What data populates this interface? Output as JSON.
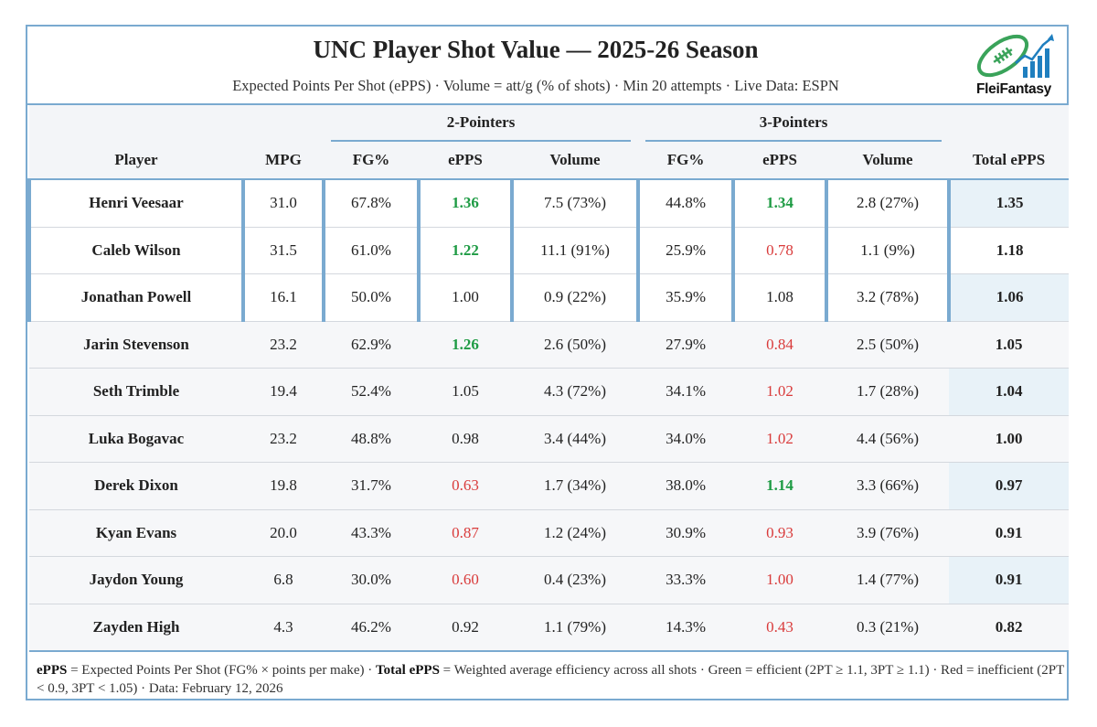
{
  "header": {
    "title": "UNC Player Shot Value — 2025-26 Season",
    "subtitle": "Expected Points Per Shot (ePPS) · Volume = att/g (% of shots) · Min 20 attempts · Live Data: ESPN",
    "logo_text": "FleiFantasy"
  },
  "table": {
    "group_2pt": "2-Pointers",
    "group_3pt": "3-Pointers",
    "columns": [
      "Player",
      "MPG",
      "FG%",
      "ePPS",
      "Volume",
      "FG%",
      "ePPS",
      "Volume",
      "Total ePPS"
    ],
    "rows": [
      {
        "player": "Henri Veesaar",
        "mpg": "31.0",
        "fg2": "67.8%",
        "epps2": "1.36",
        "epps2_class": "green",
        "vol2": "7.5 (73%)",
        "fg3": "44.8%",
        "epps3": "1.34",
        "epps3_class": "green",
        "vol3": "2.8 (27%)",
        "total": "1.35",
        "shade": true
      },
      {
        "player": "Caleb Wilson",
        "mpg": "31.5",
        "fg2": "61.0%",
        "epps2": "1.22",
        "epps2_class": "green",
        "vol2": "11.1 (91%)",
        "fg3": "25.9%",
        "epps3": "0.78",
        "epps3_class": "red",
        "vol3": "1.1 (9%)",
        "total": "1.18",
        "shade": false
      },
      {
        "player": "Jonathan Powell",
        "mpg": "16.1",
        "fg2": "50.0%",
        "epps2": "1.00",
        "epps2_class": "",
        "vol2": "0.9 (22%)",
        "fg3": "35.9%",
        "epps3": "1.08",
        "epps3_class": "",
        "vol3": "3.2 (78%)",
        "total": "1.06",
        "shade": true
      },
      {
        "player": "Jarin Stevenson",
        "mpg": "23.2",
        "fg2": "62.9%",
        "epps2": "1.26",
        "epps2_class": "green",
        "vol2": "2.6 (50%)",
        "fg3": "27.9%",
        "epps3": "0.84",
        "epps3_class": "red",
        "vol3": "2.5 (50%)",
        "total": "1.05",
        "shade": false
      },
      {
        "player": "Seth Trimble",
        "mpg": "19.4",
        "fg2": "52.4%",
        "epps2": "1.05",
        "epps2_class": "",
        "vol2": "4.3 (72%)",
        "fg3": "34.1%",
        "epps3": "1.02",
        "epps3_class": "red",
        "vol3": "1.7 (28%)",
        "total": "1.04",
        "shade": true
      },
      {
        "player": "Luka Bogavac",
        "mpg": "23.2",
        "fg2": "48.8%",
        "epps2": "0.98",
        "epps2_class": "",
        "vol2": "3.4 (44%)",
        "fg3": "34.0%",
        "epps3": "1.02",
        "epps3_class": "red",
        "vol3": "4.4 (56%)",
        "total": "1.00",
        "shade": false
      },
      {
        "player": "Derek Dixon",
        "mpg": "19.8",
        "fg2": "31.7%",
        "epps2": "0.63",
        "epps2_class": "red",
        "vol2": "1.7 (34%)",
        "fg3": "38.0%",
        "epps3": "1.14",
        "epps3_class": "green",
        "vol3": "3.3 (66%)",
        "total": "0.97",
        "shade": true
      },
      {
        "player": "Kyan Evans",
        "mpg": "20.0",
        "fg2": "43.3%",
        "epps2": "0.87",
        "epps2_class": "red",
        "vol2": "1.2 (24%)",
        "fg3": "30.9%",
        "epps3": "0.93",
        "epps3_class": "red",
        "vol3": "3.9 (76%)",
        "total": "0.91",
        "shade": false
      },
      {
        "player": "Jaydon Young",
        "mpg": "6.8",
        "fg2": "30.0%",
        "epps2": "0.60",
        "epps2_class": "red",
        "vol2": "0.4 (23%)",
        "fg3": "33.3%",
        "epps3": "1.00",
        "epps3_class": "red",
        "vol3": "1.4 (77%)",
        "total": "0.91",
        "shade": true
      },
      {
        "player": "Zayden High",
        "mpg": "4.3",
        "fg2": "46.2%",
        "epps2": "0.92",
        "epps2_class": "",
        "vol2": "1.1 (79%)",
        "fg3": "14.3%",
        "epps3": "0.43",
        "epps3_class": "red",
        "vol3": "0.3 (21%)",
        "total": "0.82",
        "shade": false
      }
    ]
  },
  "footer": {
    "term1": "ePPS",
    "def1": " = Expected Points Per Shot (FG% × points per make) · ",
    "term2": "Total ePPS",
    "def2": " = Weighted average efficiency across all shots · Green = efficient (2PT ≥ 1.1, 3PT ≥ 1.1) · Red = inefficient (2PT < 0.9, 3PT < 1.05) · Data: February 12, 2026"
  },
  "colors": {
    "frame": "#7aaad0",
    "efficient": "#1e9b44",
    "inefficient": "#d93b3b",
    "total_shade": "#e8f2f8"
  }
}
